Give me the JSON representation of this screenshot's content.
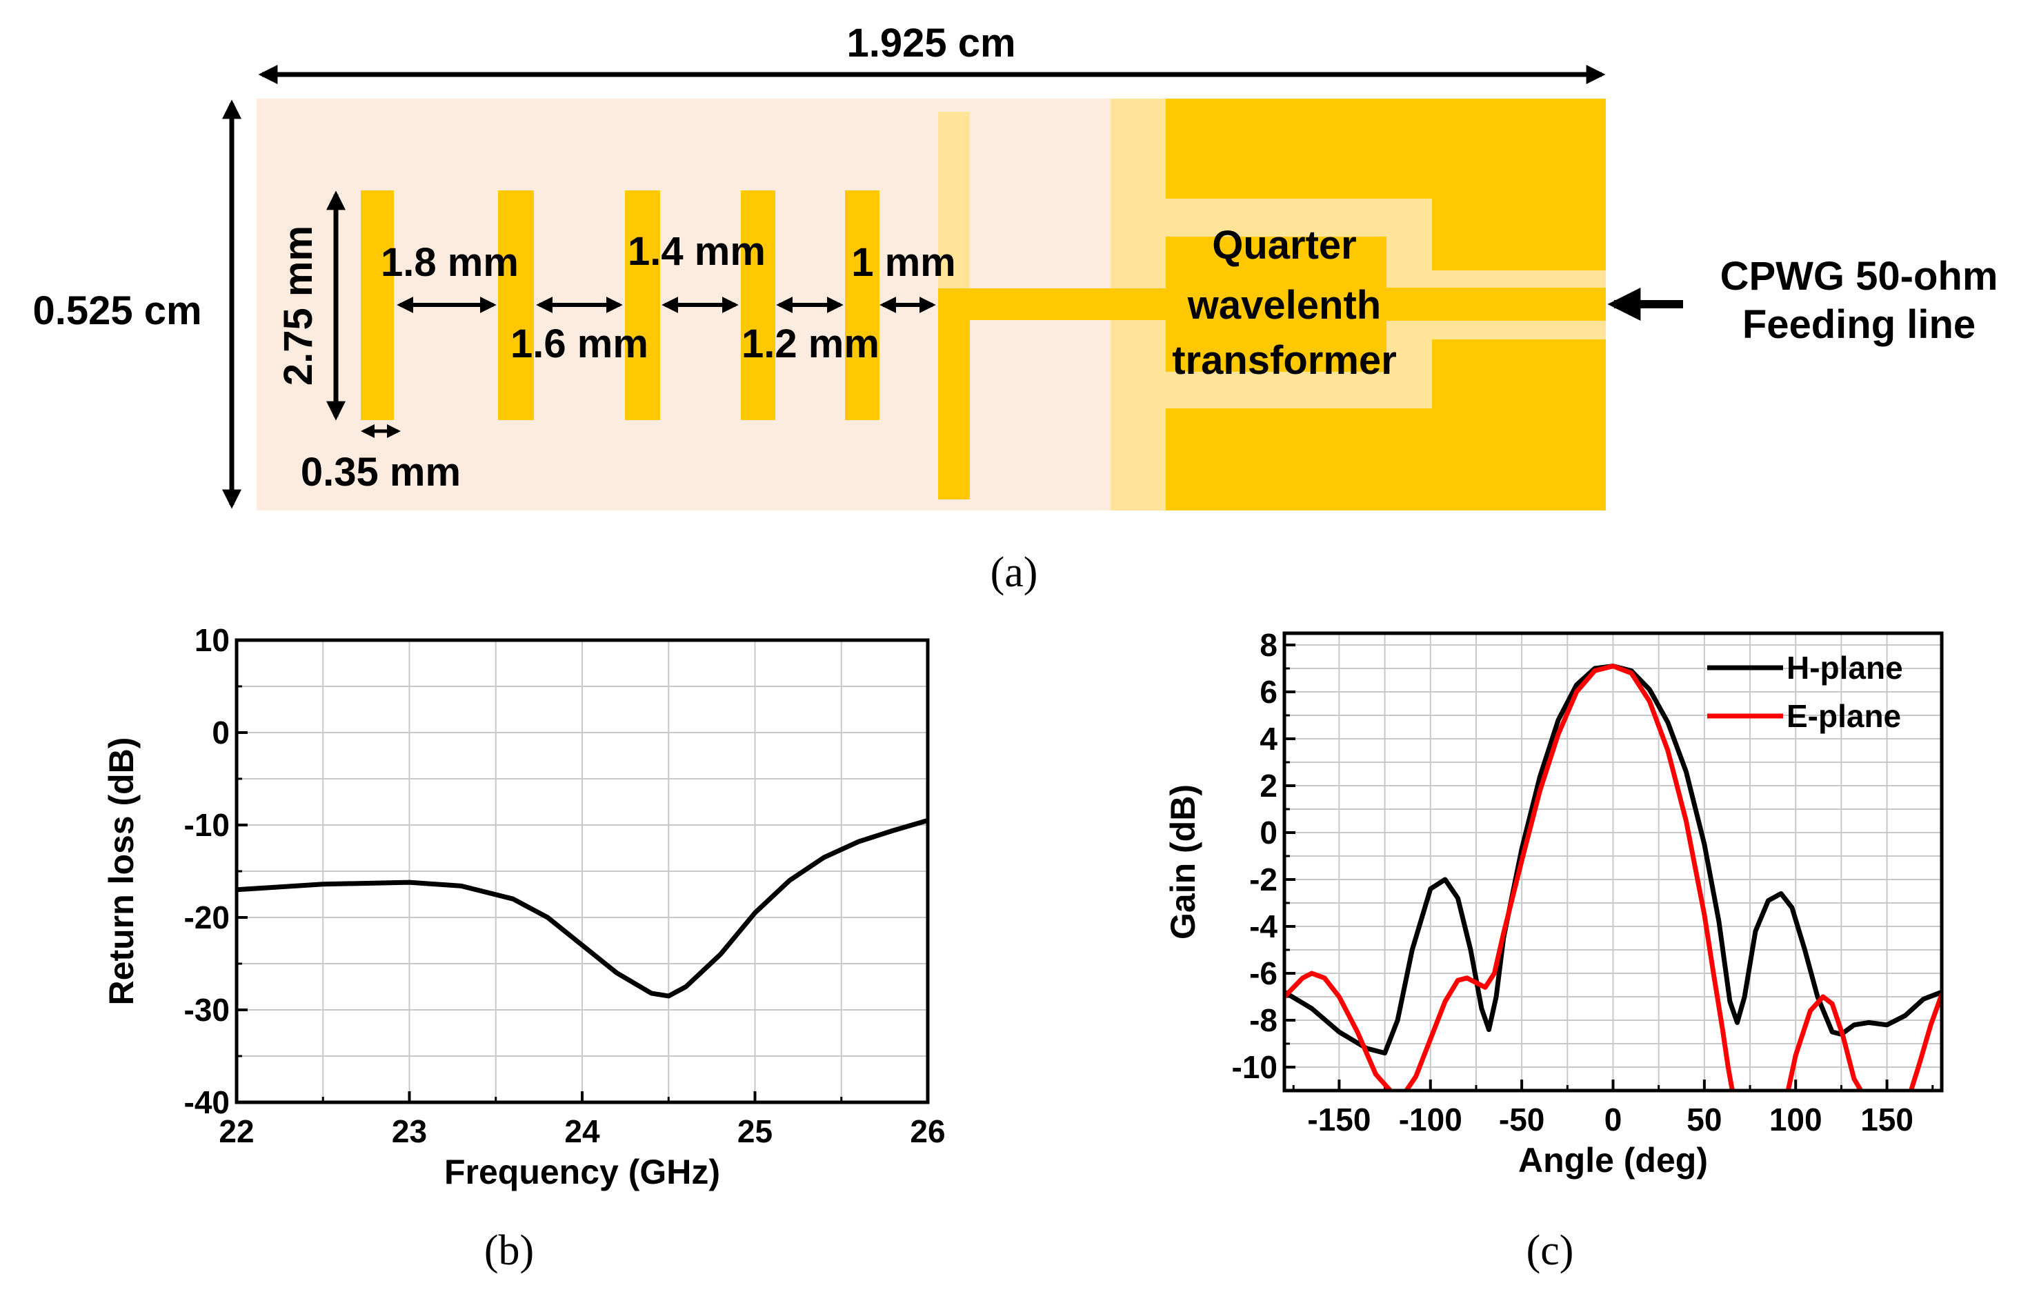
{
  "figure": {
    "a": {
      "caption": "(a)",
      "colors": {
        "substrate": "#fcece0",
        "metal": "#ffc800",
        "ground_light": "#ffe49a"
      },
      "labels": {
        "length": "1.925 cm",
        "width": "0.525 cm",
        "director_length": "2.75 mm",
        "director_width": "0.35 mm",
        "gap1": "1.8 mm",
        "gap2": "1.6 mm",
        "gap3": "1.4 mm",
        "gap4": "1.2 mm",
        "gap5": "1 mm",
        "transformer_line1": "Quarter",
        "transformer_line2": "wavelenth",
        "transformer_line3": "transformer",
        "feed_line1": "CPWG 50-ohm",
        "feed_line2": "Feeding line"
      }
    },
    "b": {
      "caption": "(b)"
    },
    "c": {
      "caption": "(c)"
    }
  },
  "chart_data": [
    {
      "type": "line",
      "xlabel": "Frequency (GHz)",
      "ylabel": "Return loss (dB)",
      "xlim": [
        22,
        26
      ],
      "ylim": [
        -40,
        10
      ],
      "xticks": [
        "22",
        "23",
        "24",
        "25",
        "26"
      ],
      "yticks": [
        "10",
        "0",
        "-10",
        "-20",
        "-30",
        "-40"
      ],
      "grid": true,
      "series": [
        {
          "color": "#000000",
          "x": [
            22,
            22.5,
            23,
            23.3,
            23.6,
            23.8,
            24,
            24.2,
            24.4,
            24.5,
            24.6,
            24.8,
            25,
            25.2,
            25.4,
            25.6,
            25.8,
            26
          ],
          "y": [
            -17,
            -16.4,
            -16.2,
            -16.6,
            -18,
            -20,
            -23,
            -26,
            -28.2,
            -28.5,
            -27.5,
            -24,
            -19.5,
            -16,
            -13.5,
            -11.8,
            -10.6,
            -9.5
          ]
        }
      ]
    },
    {
      "type": "line",
      "xlabel": "Angle (deg)",
      "ylabel": "Gain (dB)",
      "xlim": [
        -180,
        180
      ],
      "ylim": [
        -11,
        8.5
      ],
      "xticks": [
        "-150",
        "-100",
        "-50",
        "0",
        "50",
        "100",
        "150"
      ],
      "yticks": [
        "8",
        "6",
        "4",
        "2",
        "0",
        "-2",
        "-4",
        "-6",
        "-8",
        "-10"
      ],
      "grid": true,
      "legend_position": "top-right",
      "series": [
        {
          "name": "H-plane",
          "color": "#000000",
          "x": [
            -180,
            -165,
            -150,
            -135,
            -125,
            -118,
            -110,
            -100,
            -92,
            -85,
            -78,
            -72,
            -68,
            -64,
            -60,
            -50,
            -40,
            -30,
            -20,
            -10,
            0,
            10,
            20,
            30,
            40,
            50,
            58,
            64,
            68,
            72,
            78,
            85,
            92,
            98,
            105,
            112,
            120,
            125,
            132,
            140,
            150,
            160,
            170,
            180
          ],
          "y": [
            -6.8,
            -7.5,
            -8.5,
            -9.2,
            -9.4,
            -8,
            -5,
            -2.4,
            -2,
            -2.8,
            -5,
            -7.5,
            -8.4,
            -7,
            -4.5,
            -0.7,
            2.4,
            4.8,
            6.3,
            7,
            7.1,
            6.9,
            6.1,
            4.7,
            2.6,
            -0.5,
            -3.8,
            -7.2,
            -8.1,
            -7,
            -4.2,
            -2.9,
            -2.6,
            -3.2,
            -5,
            -7,
            -8.5,
            -8.6,
            -8.2,
            -8.1,
            -8.2,
            -7.8,
            -7.1,
            -6.8
          ]
        },
        {
          "name": "E-plane",
          "color": "#ff0000",
          "x": [
            -180,
            -170,
            -165,
            -158,
            -150,
            -140,
            -130,
            -122,
            -115,
            -108,
            -100,
            -92,
            -85,
            -80,
            -75,
            -70,
            -65,
            -60,
            -50,
            -40,
            -30,
            -20,
            -10,
            0,
            10,
            20,
            30,
            40,
            50,
            55,
            60,
            63,
            66,
            95,
            100,
            108,
            115,
            120,
            126,
            132,
            138,
            162,
            168,
            174,
            180
          ],
          "y": [
            -7,
            -6.2,
            -6,
            -6.2,
            -7,
            -8.5,
            -10.3,
            -11,
            -11.2,
            -10.4,
            -8.8,
            -7.2,
            -6.3,
            -6.2,
            -6.4,
            -6.6,
            -6,
            -4.3,
            -1.2,
            1.8,
            4.2,
            6,
            6.9,
            7.1,
            6.8,
            5.6,
            3.5,
            0.5,
            -3.5,
            -6,
            -8.4,
            -10,
            -11.3,
            -11.3,
            -9.5,
            -7.6,
            -7,
            -7.3,
            -8.7,
            -10.5,
            -11.3,
            -11.3,
            -9.8,
            -8.2,
            -6.9
          ]
        }
      ]
    }
  ]
}
